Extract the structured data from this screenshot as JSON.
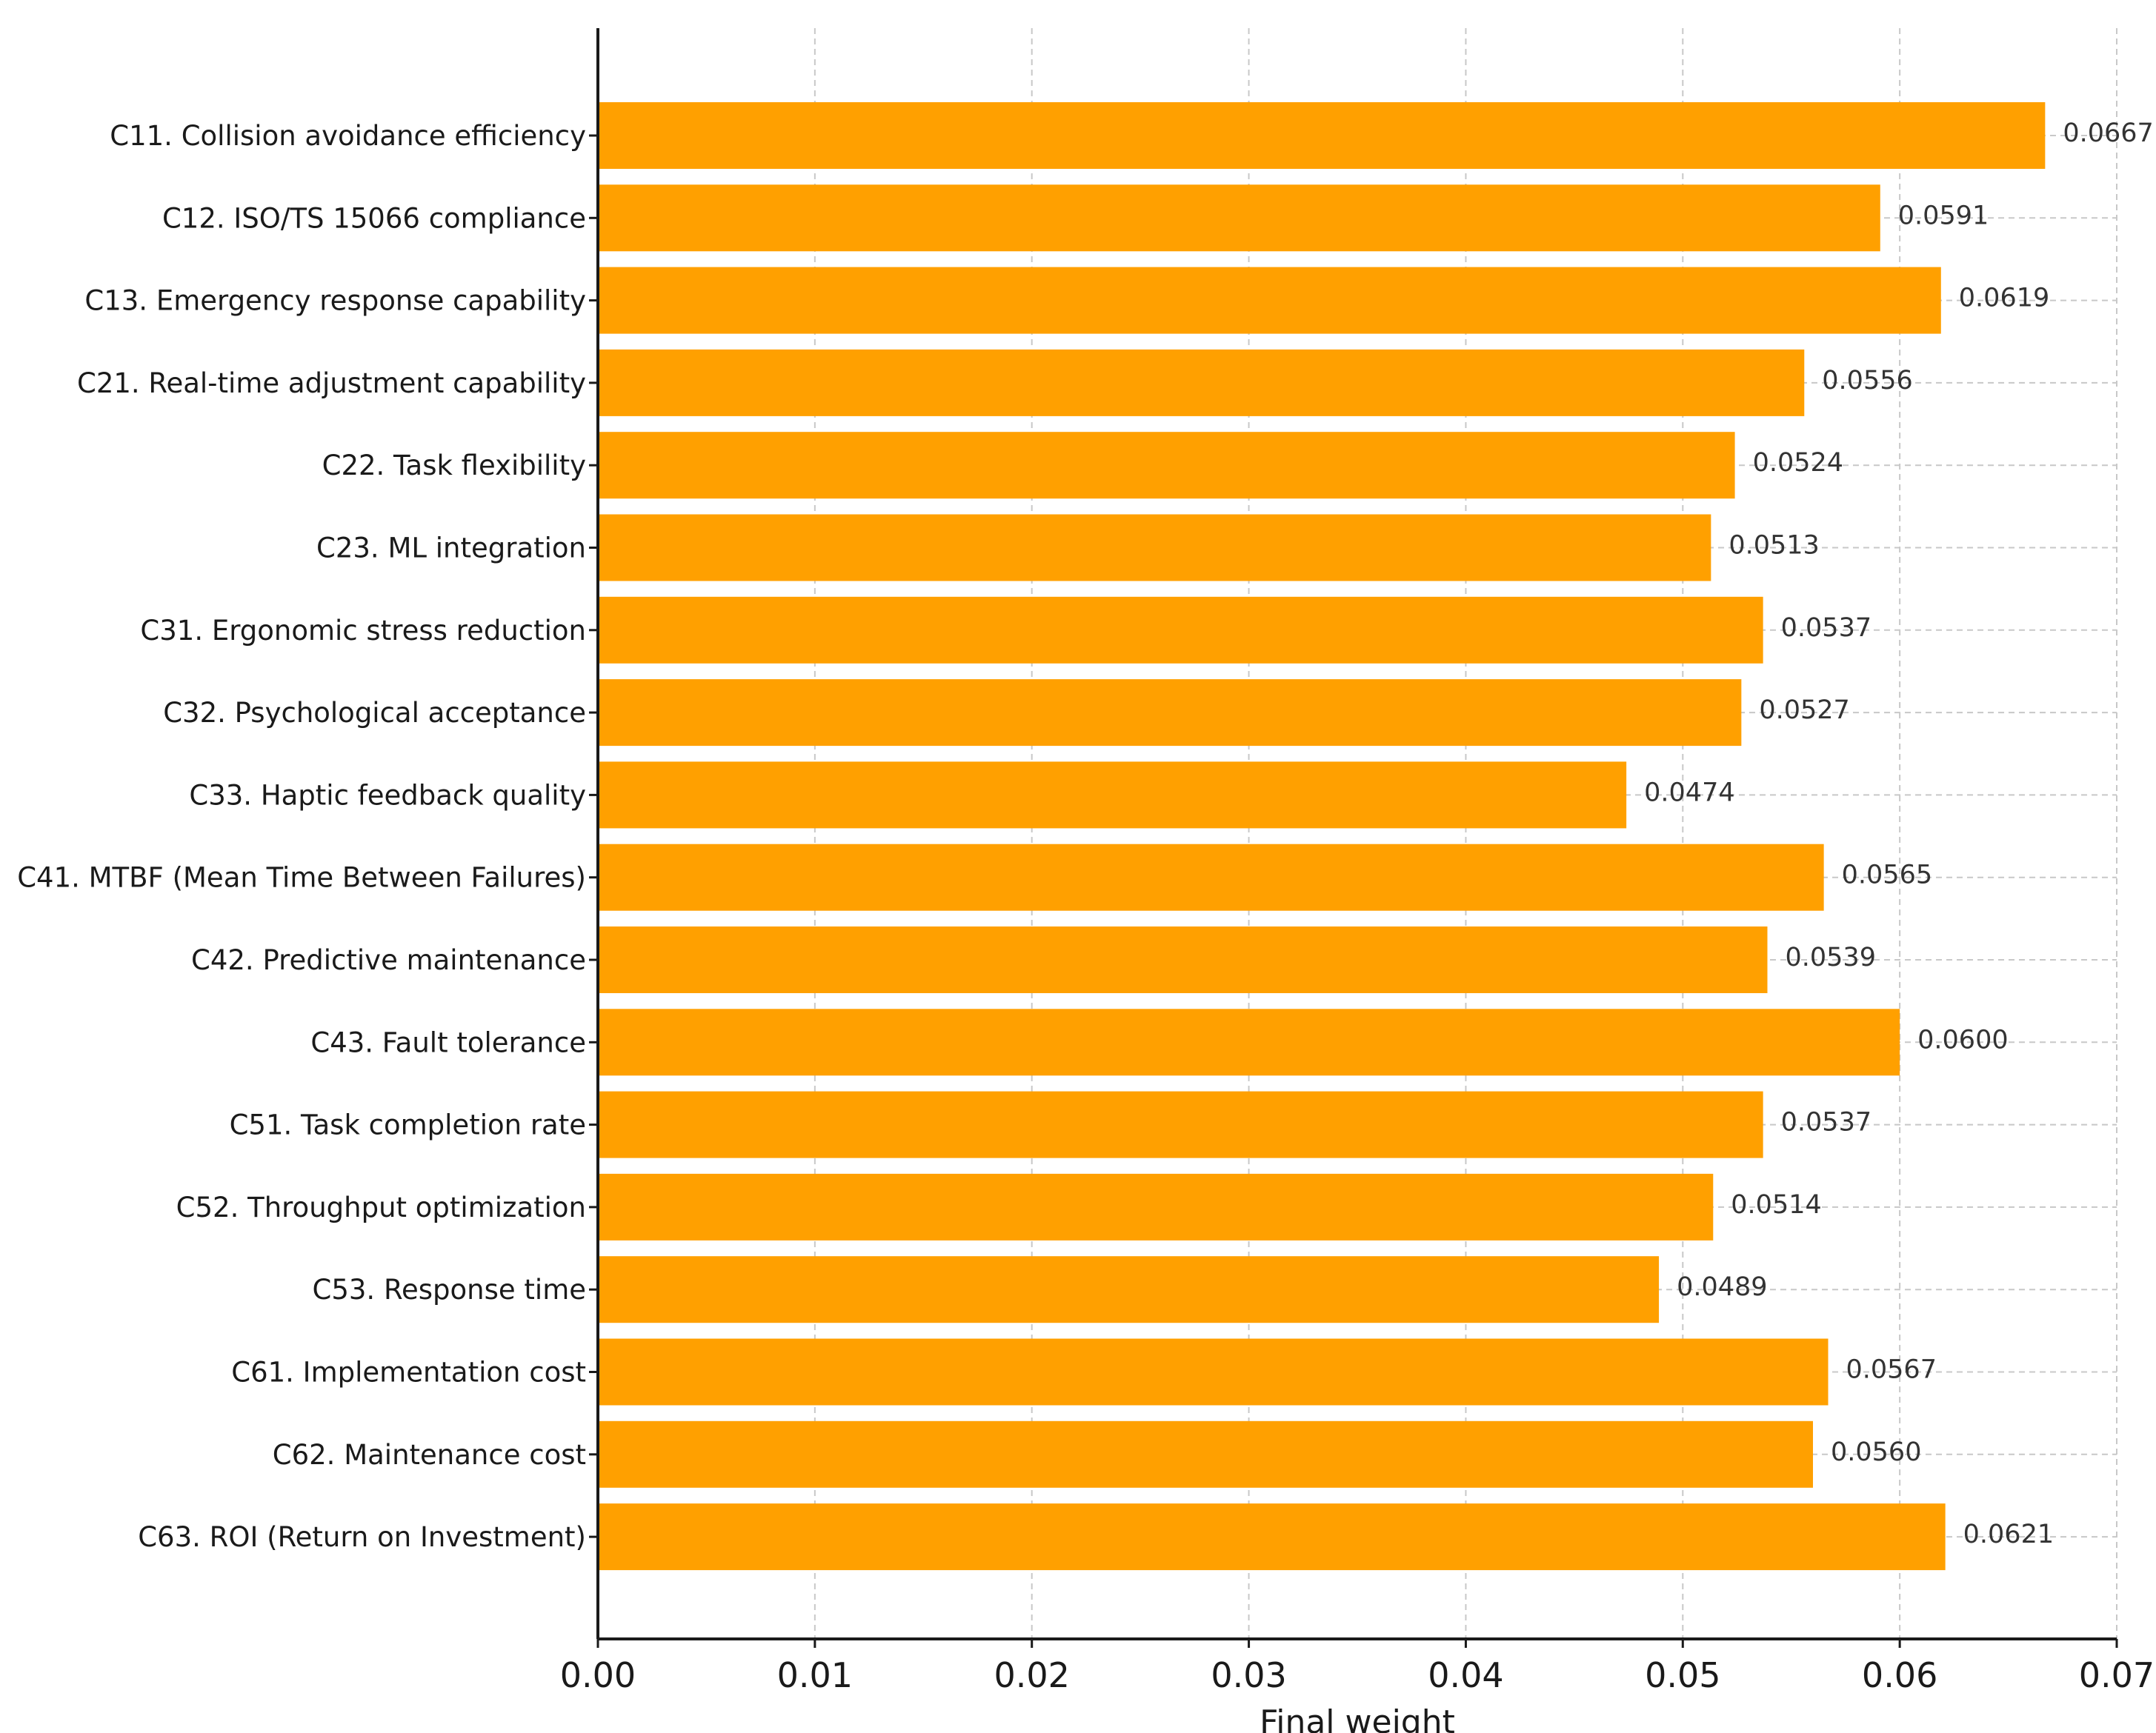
{
  "chart_data": {
    "type": "bar",
    "orientation": "horizontal",
    "xlabel": "Final weight",
    "ylabel": "",
    "xlim": [
      0,
      0.07
    ],
    "x_ticks": [
      "0.00",
      "0.01",
      "0.02",
      "0.03",
      "0.04",
      "0.05",
      "0.06",
      "0.07"
    ],
    "grid": "on (dashed, both axes)",
    "legend": "none",
    "bar_color": "#ffa000",
    "categories": [
      "C11. Collision avoidance efficiency",
      "C12. ISO/TS 15066 compliance",
      "C13. Emergency response capability",
      "C21. Real-time adjustment capability",
      "C22. Task flexibility",
      "C23. ML integration",
      "C31. Ergonomic stress reduction",
      "C32. Psychological acceptance",
      "C33. Haptic feedback quality",
      "C41. MTBF (Mean Time Between Failures)",
      "C42. Predictive maintenance",
      "C43. Fault tolerance",
      "C51. Task completion rate",
      "C52. Throughput optimization",
      "C53. Response time",
      "C61. Implementation cost",
      "C62. Maintenance cost",
      "C63. ROI (Return on Investment)"
    ],
    "values": [
      0.0667,
      0.0591,
      0.0619,
      0.0556,
      0.0524,
      0.0513,
      0.0537,
      0.0527,
      0.0474,
      0.0565,
      0.0539,
      0.06,
      0.0537,
      0.0514,
      0.0489,
      0.0567,
      0.056,
      0.0621
    ],
    "value_labels": [
      "0.0667",
      "0.0591",
      "0.0619",
      "0.0556",
      "0.0524",
      "0.0513",
      "0.0537",
      "0.0527",
      "0.0474",
      "0.0565",
      "0.0539",
      "0.0600",
      "0.0537",
      "0.0514",
      "0.0489",
      "0.0567",
      "0.0560",
      "0.0621"
    ]
  }
}
